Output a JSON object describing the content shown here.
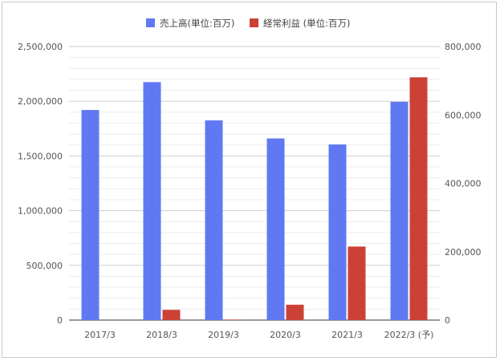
{
  "chart_data": {
    "type": "bar",
    "categories": [
      "2017/3",
      "2018/3",
      "2019/3",
      "2020/3",
      "2021/3",
      "2022/3 (予)"
    ],
    "series": [
      {
        "name": "売上高(単位:百万)",
        "axis": "left",
        "color": "#6079f3",
        "values": [
          1920000,
          2175000,
          1825000,
          1660000,
          1605000,
          1995000
        ]
      },
      {
        "name": "経常利益 (単位:百万)",
        "axis": "right",
        "color": "#cc4136",
        "values": [
          0,
          30000,
          1500,
          45000,
          215000,
          710000
        ]
      }
    ],
    "left_axis": {
      "ylim": [
        0,
        2500000
      ],
      "ticks": [
        0,
        500000,
        1000000,
        1500000,
        2000000,
        2500000
      ],
      "tick_labels": [
        "0",
        "500,000",
        "1,000,000",
        "1,500,000",
        "2,000,000",
        "2,500,000"
      ]
    },
    "right_axis": {
      "ylim": [
        0,
        800000
      ],
      "ticks": [
        0,
        200000,
        400000,
        600000,
        800000
      ],
      "tick_labels": [
        "0",
        "200,000",
        "400,000",
        "600,000",
        "800,000"
      ]
    },
    "legend_position": "top",
    "grid": true
  }
}
